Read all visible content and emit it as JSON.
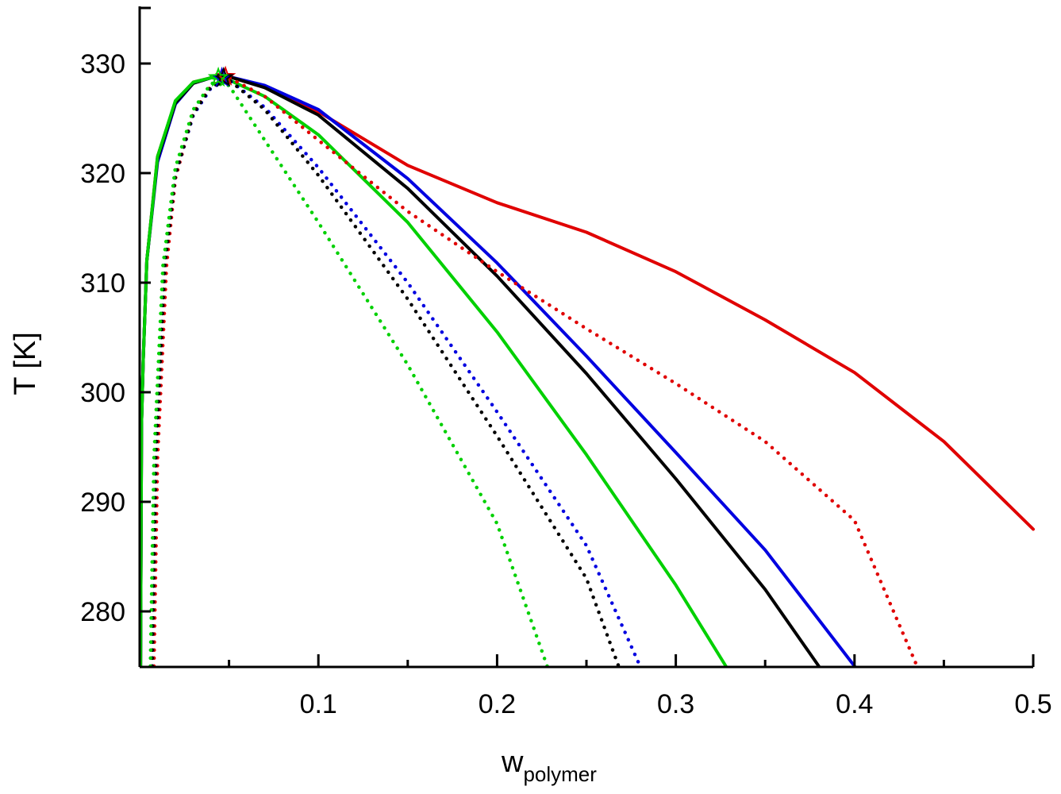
{
  "chart_data": {
    "type": "line",
    "title": "",
    "xlabel": "w",
    "xlabel_subscript": "polymer",
    "ylabel": "T [K]",
    "xlim": [
      0,
      0.5
    ],
    "ylim": [
      275,
      335
    ],
    "x_ticks": [
      0.1,
      0.2,
      0.3,
      0.4,
      0.5
    ],
    "x_tick_labels": [
      "0.1",
      "0.2",
      "0.3",
      "0.4",
      "0.5"
    ],
    "x_minor_ticks": [
      0.05,
      0.15,
      0.25,
      0.35,
      0.45
    ],
    "y_ticks": [
      280,
      290,
      300,
      310,
      320,
      330
    ],
    "y_tick_labels": [
      "280",
      "290",
      "300",
      "310",
      "320",
      "330"
    ],
    "grid": false,
    "series": [
      {
        "name": "red solid",
        "color": "#e00000",
        "style": "solid",
        "points": [
          [
            0.0005,
            275
          ],
          [
            0.001,
            297
          ],
          [
            0.002,
            303
          ],
          [
            0.004,
            312
          ],
          [
            0.01,
            321.5
          ],
          [
            0.02,
            326.5
          ],
          [
            0.03,
            328.3
          ],
          [
            0.04,
            328.7
          ],
          [
            0.05,
            328.8
          ],
          [
            0.07,
            327.8
          ],
          [
            0.1,
            325.6
          ],
          [
            0.15,
            320.7
          ],
          [
            0.2,
            317.3
          ],
          [
            0.25,
            314.6
          ],
          [
            0.3,
            311
          ],
          [
            0.35,
            306.6
          ],
          [
            0.4,
            301.8
          ],
          [
            0.45,
            295.5
          ],
          [
            0.5,
            287.5
          ]
        ]
      },
      {
        "name": "blue solid",
        "color": "#0000e0",
        "style": "solid",
        "points": [
          [
            0.0005,
            275
          ],
          [
            0.001,
            297
          ],
          [
            0.002,
            303
          ],
          [
            0.004,
            312
          ],
          [
            0.01,
            321
          ],
          [
            0.02,
            326.3
          ],
          [
            0.03,
            328.2
          ],
          [
            0.04,
            328.7
          ],
          [
            0.05,
            328.8
          ],
          [
            0.07,
            328
          ],
          [
            0.1,
            325.8
          ],
          [
            0.15,
            319.5
          ],
          [
            0.2,
            311.8
          ],
          [
            0.25,
            303.3
          ],
          [
            0.3,
            294.5
          ],
          [
            0.35,
            285.6
          ],
          [
            0.4,
            275
          ]
        ]
      },
      {
        "name": "black solid",
        "color": "#000000",
        "style": "solid",
        "points": [
          [
            0.0005,
            275
          ],
          [
            0.001,
            297
          ],
          [
            0.002,
            303
          ],
          [
            0.004,
            312
          ],
          [
            0.01,
            321.3
          ],
          [
            0.02,
            326.4
          ],
          [
            0.03,
            328.2
          ],
          [
            0.04,
            328.7
          ],
          [
            0.05,
            328.8
          ],
          [
            0.07,
            327.8
          ],
          [
            0.1,
            325.3
          ],
          [
            0.15,
            318.6
          ],
          [
            0.2,
            310.6
          ],
          [
            0.25,
            301.7
          ],
          [
            0.3,
            292.1
          ],
          [
            0.35,
            282
          ],
          [
            0.38,
            275
          ]
        ]
      },
      {
        "name": "green solid",
        "color": "#00d000",
        "style": "solid",
        "points": [
          [
            0.0005,
            275
          ],
          [
            0.001,
            297
          ],
          [
            0.002,
            303
          ],
          [
            0.004,
            312
          ],
          [
            0.01,
            321.5
          ],
          [
            0.02,
            326.6
          ],
          [
            0.03,
            328.3
          ],
          [
            0.04,
            328.7
          ],
          [
            0.05,
            328.5
          ],
          [
            0.07,
            327
          ],
          [
            0.1,
            323.5
          ],
          [
            0.15,
            315.5
          ],
          [
            0.2,
            305.5
          ],
          [
            0.25,
            294.3
          ],
          [
            0.3,
            282.4
          ],
          [
            0.328,
            275
          ]
        ]
      },
      {
        "name": "red dotted",
        "color": "#e00000",
        "style": "dotted",
        "points": [
          [
            0.008,
            275
          ],
          [
            0.01,
            294
          ],
          [
            0.015,
            311.5
          ],
          [
            0.02,
            319.5
          ],
          [
            0.03,
            325.5
          ],
          [
            0.04,
            328
          ],
          [
            0.05,
            328.7
          ],
          [
            0.07,
            327
          ],
          [
            0.1,
            323
          ],
          [
            0.15,
            316.5
          ],
          [
            0.2,
            311
          ],
          [
            0.25,
            305.8
          ],
          [
            0.3,
            300.8
          ],
          [
            0.35,
            295.5
          ],
          [
            0.4,
            288.3
          ],
          [
            0.435,
            275
          ]
        ]
      },
      {
        "name": "blue dotted",
        "color": "#0000e0",
        "style": "dotted",
        "points": [
          [
            0.007,
            275
          ],
          [
            0.009,
            294
          ],
          [
            0.014,
            311.5
          ],
          [
            0.02,
            319.8
          ],
          [
            0.03,
            325.3
          ],
          [
            0.04,
            327.8
          ],
          [
            0.05,
            328.5
          ],
          [
            0.07,
            326
          ],
          [
            0.1,
            320.5
          ],
          [
            0.15,
            310
          ],
          [
            0.2,
            298.2
          ],
          [
            0.25,
            286
          ],
          [
            0.28,
            275
          ]
        ]
      },
      {
        "name": "black dotted",
        "color": "#000000",
        "style": "dotted",
        "points": [
          [
            0.007,
            275
          ],
          [
            0.009,
            294
          ],
          [
            0.014,
            311.5
          ],
          [
            0.02,
            319.8
          ],
          [
            0.03,
            325.4
          ],
          [
            0.04,
            327.9
          ],
          [
            0.05,
            328.5
          ],
          [
            0.07,
            325.8
          ],
          [
            0.1,
            319.8
          ],
          [
            0.15,
            308.5
          ],
          [
            0.2,
            296
          ],
          [
            0.25,
            283
          ],
          [
            0.268,
            275
          ]
        ]
      },
      {
        "name": "green dotted",
        "color": "#00d000",
        "style": "dotted",
        "points": [
          [
            0.006,
            275
          ],
          [
            0.008,
            294
          ],
          [
            0.013,
            311.5
          ],
          [
            0.02,
            320.5
          ],
          [
            0.03,
            325.8
          ],
          [
            0.04,
            328.2
          ],
          [
            0.05,
            328
          ],
          [
            0.07,
            323
          ],
          [
            0.1,
            315.5
          ],
          [
            0.15,
            302.5
          ],
          [
            0.2,
            288
          ],
          [
            0.228,
            275
          ]
        ]
      }
    ],
    "markers": [
      {
        "name": "red star",
        "color": "#e00000",
        "x": 0.048,
        "y": 328.8
      },
      {
        "name": "blue star",
        "color": "#0000e0",
        "x": 0.046,
        "y": 328.7
      },
      {
        "name": "black star",
        "color": "#000000",
        "x": 0.047,
        "y": 328.7
      },
      {
        "name": "green star",
        "color": "#00d000",
        "x": 0.044,
        "y": 328.7
      }
    ]
  }
}
